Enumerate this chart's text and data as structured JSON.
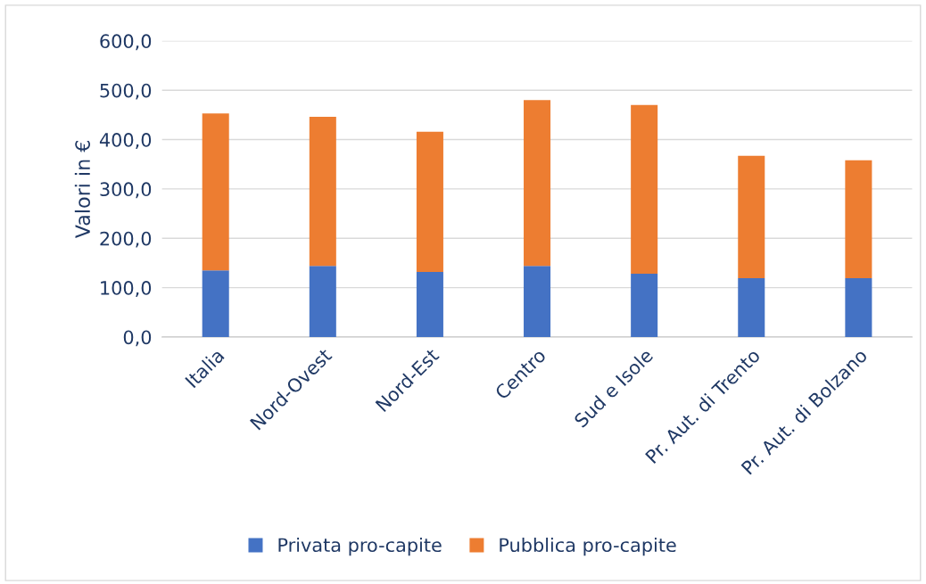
{
  "chart_data": {
    "type": "bar",
    "stacked": true,
    "ylabel": "Valori in €",
    "categories": [
      "Italia",
      "Nord-Ovest",
      "Nord-Est",
      "Centro",
      "Sud e Isole",
      "Pr. Aut. di Trento",
      "Pr. Aut. di Bolzano"
    ],
    "series": [
      {
        "name": "Privata pro-capite",
        "color": "#4472c4",
        "values": [
          135,
          144,
          132,
          144,
          128,
          119,
          119
        ]
      },
      {
        "name": "Pubblica pro-capite",
        "color": "#ed7d31",
        "values": [
          318,
          302,
          284,
          336,
          342,
          248,
          239
        ]
      }
    ],
    "ylim": [
      0,
      600
    ],
    "yticks": [
      {
        "value": 0,
        "label": "0,0"
      },
      {
        "value": 100,
        "label": "100,0"
      },
      {
        "value": 200,
        "label": "200,0"
      },
      {
        "value": 300,
        "label": "300,0"
      },
      {
        "value": 400,
        "label": "400,0"
      },
      {
        "value": 500,
        "label": "500,0"
      },
      {
        "value": 600,
        "label": "600,0"
      }
    ],
    "grid": "y",
    "legend": "bottom"
  }
}
